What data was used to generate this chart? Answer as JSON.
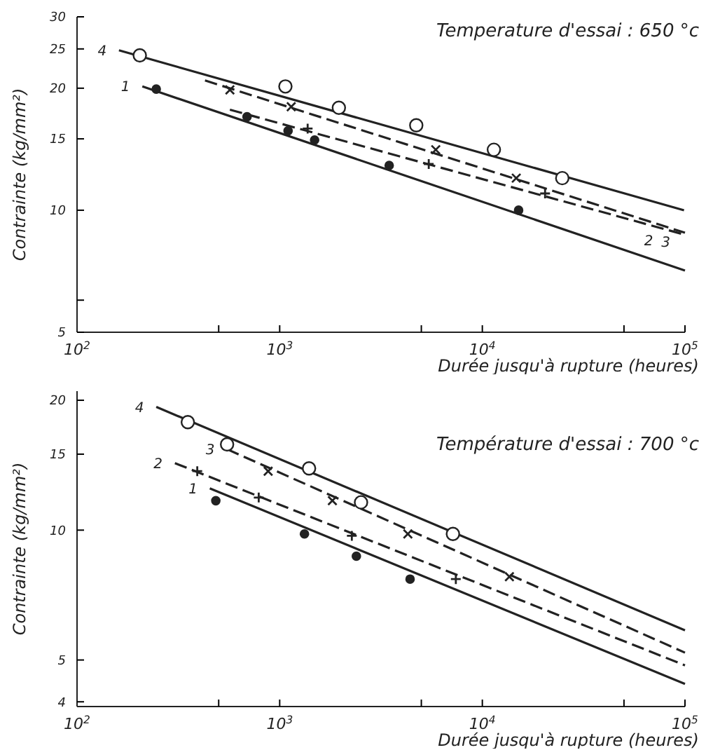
{
  "chart_data": [
    {
      "type": "line",
      "title": "Temperature d'essai : 650 °c",
      "xlabel": "Durée jusqu'à rupture (heures)",
      "ylabel": "Contrainte (kg/mm²)",
      "log": "xy",
      "grid": false,
      "xlim": [
        100,
        100000
      ],
      "ylim": [
        5,
        30
      ],
      "xticks": [
        {
          "value": 100,
          "label": "10$^{2}$"
        },
        {
          "value": 500,
          "label": null
        },
        {
          "value": 1000,
          "label": "10$^{3}$"
        },
        {
          "value": 5000,
          "label": null
        },
        {
          "value": 10000,
          "label": "10$^{4}$"
        },
        {
          "value": 50000,
          "label": null
        },
        {
          "value": 100000,
          "label": "10$^{5}$"
        }
      ],
      "yticks": [
        5,
        {
          "value": 6,
          "label": null
        },
        10,
        15,
        20,
        25,
        30
      ],
      "series": [
        {
          "name": "4",
          "type": "line",
          "color": "#222222",
          "line_style": "solid",
          "x": [
            161,
            98900
          ],
          "values": [
            24.8,
            10
          ]
        },
        {
          "name": "3",
          "type": "line",
          "color": "#222222",
          "line_style": "dashed",
          "x": [
            428,
            100000
          ],
          "values": [
            20.9,
            8.8
          ]
        },
        {
          "name": "2",
          "type": "line",
          "color": "#222222",
          "line_style": "dashed",
          "x": [
            568,
            100000
          ],
          "values": [
            17.7,
            8.7
          ]
        },
        {
          "name": "1",
          "type": "line",
          "color": "#222222",
          "line_style": "solid",
          "x": [
            210,
            100000
          ],
          "values": [
            20.2,
            7.1
          ]
        },
        {
          "type": "scatter",
          "marker": "circle",
          "color": "#ffffff",
          "x": [
            204,
            1067,
            1959,
            4720,
            11400,
            24800
          ],
          "values": [
            24.1,
            20.2,
            17.9,
            16.2,
            14.1,
            12.0
          ]
        },
        {
          "type": "scatter",
          "marker": "cross",
          "color": "#222222",
          "x": [
            568,
            1140,
            5890,
            14700
          ],
          "values": [
            19.8,
            18.0,
            14.1,
            12.0
          ]
        },
        {
          "type": "scatter",
          "marker": "plus",
          "color": "#222222",
          "x": [
            1374,
            5440,
            20400
          ],
          "values": [
            15.9,
            13.0,
            11.0
          ]
        },
        {
          "type": "scatter",
          "marker": "circle",
          "color": "#222222",
          "x": [
            246,
            690,
            1100,
            1487,
            3470,
            15100
          ],
          "values": [
            19.9,
            17.0,
            15.7,
            14.9,
            12.9,
            10.0
          ]
        }
      ]
    },
    {
      "type": "line",
      "title": "Température d'essai : 700 °c",
      "xlabel": "Durée jusqu'à rupture (heures)",
      "ylabel": "Contrainte (kg/mm²)",
      "log": "xy",
      "grid": false,
      "xlim": [
        100,
        100000
      ],
      "ylim": [
        3.9,
        21
      ],
      "xticks": [
        {
          "value": 100,
          "label": "10$^{2}$"
        },
        {
          "value": 500,
          "label": null
        },
        {
          "value": 1000,
          "label": "10$^{3}$"
        },
        {
          "value": 5000,
          "label": null
        },
        {
          "value": 10000,
          "label": "10$^{4}$"
        },
        {
          "value": 50000,
          "label": null
        },
        {
          "value": 100000,
          "label": "10$^{5}$"
        }
      ],
      "yticks": [
        4,
        5,
        10,
        15,
        20
      ],
      "series": [
        {
          "name": "4",
          "type": "line",
          "color": "#222222",
          "line_style": "solid",
          "x": [
            246,
            100000
          ],
          "values": [
            19.3,
            5.86
          ]
        },
        {
          "name": "3",
          "type": "line",
          "color": "#222222",
          "line_style": "dashed",
          "x": [
            550,
            100000
          ],
          "values": [
            15.4,
            5.2
          ]
        },
        {
          "name": "2",
          "type": "line",
          "color": "#222222",
          "line_style": "dashed",
          "x": [
            304,
            100000
          ],
          "values": [
            14.3,
            4.86
          ]
        },
        {
          "name": "1",
          "type": "line",
          "color": "#222222",
          "line_style": "solid",
          "x": [
            452,
            100000
          ],
          "values": [
            12.5,
            4.4
          ]
        },
        {
          "type": "scatter",
          "marker": "circle",
          "color": "#ffffff",
          "x": [
            352,
            550,
            1396,
            2520,
            7160
          ],
          "values": [
            17.8,
            15.8,
            13.9,
            11.6,
            9.8
          ]
        },
        {
          "type": "scatter",
          "marker": "cross",
          "color": "#222222",
          "x": [
            877,
            1820,
            4290,
            13600
          ],
          "values": [
            13.7,
            11.7,
            9.8,
            7.8
          ]
        },
        {
          "type": "scatter",
          "marker": "plus",
          "color": "#222222",
          "x": [
            392,
            788,
            2270,
            7400
          ],
          "values": [
            13.7,
            11.9,
            9.7,
            7.7
          ]
        },
        {
          "type": "scatter",
          "marker": "circle",
          "color": "#222222",
          "x": [
            484,
            1325,
            2390,
            4400
          ],
          "values": [
            11.7,
            9.8,
            8.7,
            7.7
          ]
        }
      ]
    }
  ]
}
